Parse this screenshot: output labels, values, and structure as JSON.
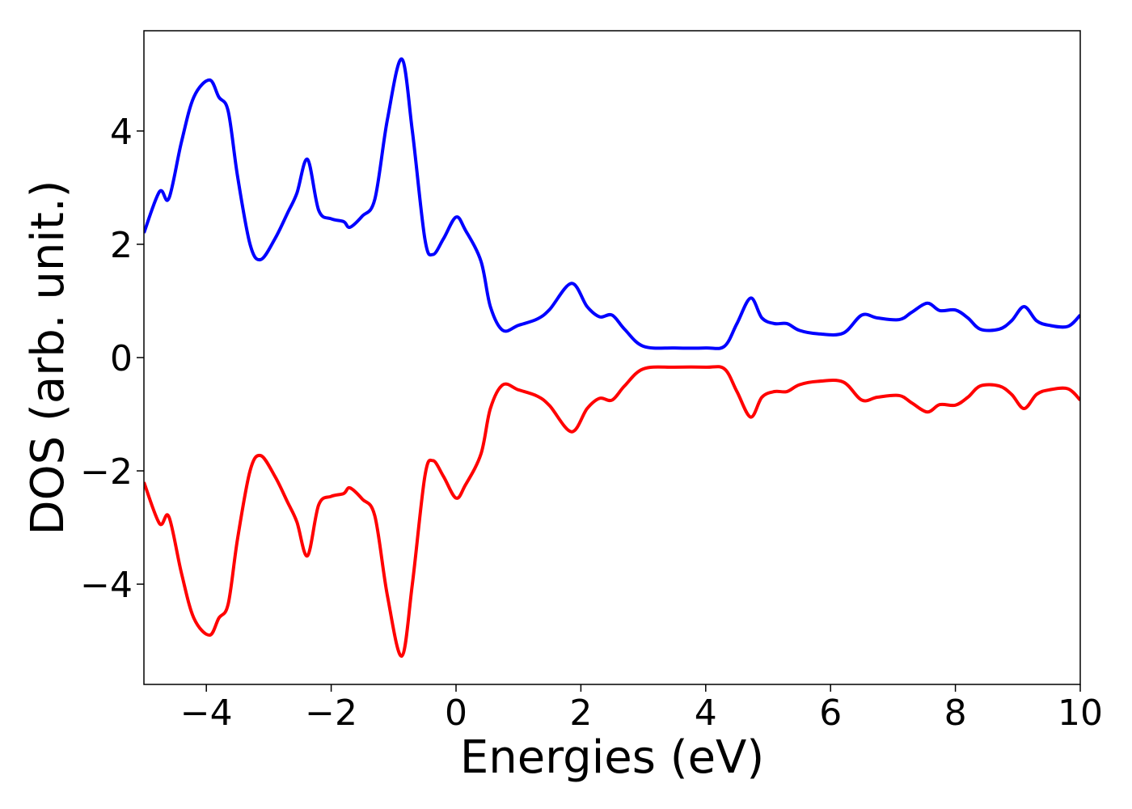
{
  "chart_data": {
    "type": "line",
    "xlabel": "Energies (eV)",
    "ylabel": "DOS (arb. unit.)",
    "xlim": [
      -5,
      10
    ],
    "ylim": [
      -5.77,
      5.77
    ],
    "xticks": [
      {
        "value": -4,
        "label": "−4"
      },
      {
        "value": -2,
        "label": "−2"
      },
      0,
      2,
      4,
      6,
      8,
      10
    ],
    "yticks": [
      {
        "value": -4,
        "label": "−4"
      },
      {
        "value": -2,
        "label": "−2"
      },
      0,
      2,
      4
    ],
    "x": [
      -5.0,
      -4.75,
      -4.6,
      -4.4,
      -4.2,
      -3.95,
      -3.8,
      -3.65,
      -3.5,
      -3.3,
      -3.13,
      -2.9,
      -2.7,
      -2.55,
      -2.38,
      -2.2,
      -2.0,
      -1.8,
      -1.7,
      -1.5,
      -1.3,
      -1.1,
      -0.87,
      -0.7,
      -0.5,
      -0.37,
      -0.2,
      0.0,
      0.15,
      0.4,
      0.55,
      0.75,
      1.0,
      1.3,
      1.5,
      1.85,
      2.1,
      2.3,
      2.5,
      2.7,
      3.0,
      3.5,
      4.0,
      4.3,
      4.5,
      4.72,
      4.9,
      5.1,
      5.3,
      5.5,
      5.8,
      6.2,
      6.5,
      6.75,
      7.1,
      7.3,
      7.55,
      7.75,
      8.0,
      8.2,
      8.4,
      8.7,
      8.9,
      9.1,
      9.3,
      9.5,
      9.8,
      10.0
    ],
    "series": [
      {
        "color": "#0000ff",
        "values": [
          2.2,
          2.93,
          2.81,
          3.8,
          4.6,
          4.9,
          4.6,
          4.35,
          3.2,
          2.0,
          1.73,
          2.1,
          2.55,
          2.9,
          3.5,
          2.6,
          2.45,
          2.4,
          2.3,
          2.5,
          2.8,
          4.2,
          5.27,
          4.0,
          2.1,
          1.82,
          2.1,
          2.48,
          2.25,
          1.7,
          0.9,
          0.48,
          0.57,
          0.68,
          0.85,
          1.31,
          0.9,
          0.72,
          0.75,
          0.5,
          0.2,
          0.17,
          0.17,
          0.2,
          0.6,
          1.05,
          0.7,
          0.6,
          0.6,
          0.48,
          0.42,
          0.43,
          0.75,
          0.7,
          0.67,
          0.8,
          0.96,
          0.83,
          0.84,
          0.7,
          0.5,
          0.5,
          0.65,
          0.9,
          0.65,
          0.57,
          0.55,
          0.75
        ]
      },
      {
        "color": "#ff0000",
        "values": [
          -2.2,
          -2.93,
          -2.81,
          -3.8,
          -4.6,
          -4.9,
          -4.6,
          -4.35,
          -3.2,
          -2.0,
          -1.73,
          -2.1,
          -2.55,
          -2.9,
          -3.5,
          -2.6,
          -2.45,
          -2.4,
          -2.3,
          -2.5,
          -2.8,
          -4.2,
          -5.27,
          -4.0,
          -2.1,
          -1.82,
          -2.1,
          -2.48,
          -2.25,
          -1.7,
          -0.9,
          -0.48,
          -0.57,
          -0.68,
          -0.85,
          -1.31,
          -0.9,
          -0.72,
          -0.75,
          -0.5,
          -0.2,
          -0.17,
          -0.17,
          -0.2,
          -0.6,
          -1.05,
          -0.7,
          -0.6,
          -0.6,
          -0.48,
          -0.42,
          -0.43,
          -0.75,
          -0.7,
          -0.67,
          -0.8,
          -0.96,
          -0.83,
          -0.84,
          -0.7,
          -0.5,
          -0.5,
          -0.65,
          -0.9,
          -0.65,
          -0.57,
          -0.55,
          -0.75
        ]
      }
    ]
  }
}
